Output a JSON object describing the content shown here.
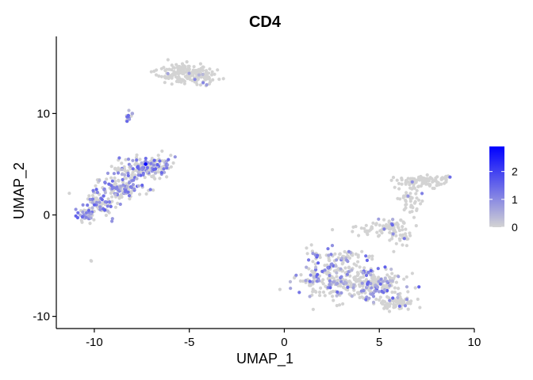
{
  "chart_data": {
    "type": "scatter",
    "title": "CD4",
    "xlabel": "UMAP_1",
    "ylabel": "UMAP_2",
    "xlim": [
      -12,
      10
    ],
    "ylim": [
      -11.2,
      17.6
    ],
    "x_ticks": [
      -10,
      -5,
      0,
      5,
      10
    ],
    "x_tick_labels": [
      "-10",
      "-5",
      "0",
      "5",
      "10"
    ],
    "y_ticks": [
      -10,
      0,
      10
    ],
    "y_tick_labels": [
      "-10",
      "0",
      "10"
    ],
    "color_scale": {
      "low": "#d3d3d3",
      "high": "#0000ff",
      "range": [
        0,
        2.9
      ],
      "ticks": [
        0,
        1,
        2
      ],
      "tick_labels": [
        "0",
        "1",
        "2"
      ]
    },
    "grid": false,
    "legend_placement": "right",
    "clusters": [
      {
        "cx": -5.3,
        "cy": 14.1,
        "sx": 0.7,
        "sy": 0.55,
        "n": 150,
        "expr_frac": 0.03
      },
      {
        "cx": -4.4,
        "cy": 13.5,
        "sx": 0.35,
        "sy": 0.45,
        "n": 40,
        "expr_frac": 0.03
      },
      {
        "cx": -8.2,
        "cy": 9.5,
        "sx": 0.12,
        "sy": 0.25,
        "n": 12,
        "expr_frac": 0.4
      },
      {
        "cx": -7.3,
        "cy": 4.6,
        "sx": 0.75,
        "sy": 0.55,
        "n": 170,
        "expr_frac": 0.4
      },
      {
        "cx": -8.7,
        "cy": 2.6,
        "sx": 0.65,
        "sy": 0.55,
        "n": 130,
        "expr_frac": 0.45
      },
      {
        "cx": -9.7,
        "cy": 1.0,
        "sx": 0.45,
        "sy": 0.55,
        "n": 70,
        "expr_frac": 0.45
      },
      {
        "cx": -10.5,
        "cy": -0.2,
        "sx": 0.25,
        "sy": 0.35,
        "n": 35,
        "expr_frac": 0.5
      },
      {
        "cx": -10.1,
        "cy": -4.5,
        "sx": 0.04,
        "sy": 0.04,
        "n": 2,
        "expr_frac": 0.0
      },
      {
        "cx": 7.3,
        "cy": 3.3,
        "sx": 0.7,
        "sy": 0.3,
        "n": 90,
        "expr_frac": 0.02
      },
      {
        "cx": 6.6,
        "cy": 1.2,
        "sx": 0.3,
        "sy": 0.9,
        "n": 50,
        "expr_frac": 0.05
      },
      {
        "cx": 5.6,
        "cy": -1.0,
        "sx": 0.45,
        "sy": 0.35,
        "n": 45,
        "expr_frac": 0.05
      },
      {
        "cx": 6.1,
        "cy": -2.2,
        "sx": 0.25,
        "sy": 0.5,
        "n": 25,
        "expr_frac": 0.05
      },
      {
        "cx": 4.6,
        "cy": -1.5,
        "sx": 0.55,
        "sy": 0.3,
        "n": 30,
        "expr_frac": 0.05
      },
      {
        "cx": 2.7,
        "cy": -6.3,
        "sx": 1.0,
        "sy": 1.0,
        "n": 250,
        "expr_frac": 0.3
      },
      {
        "cx": 4.8,
        "cy": -6.9,
        "sx": 0.8,
        "sy": 0.7,
        "n": 170,
        "expr_frac": 0.25
      },
      {
        "cx": 5.9,
        "cy": -8.6,
        "sx": 0.45,
        "sy": 0.4,
        "n": 70,
        "expr_frac": 0.05
      },
      {
        "cx": 3.2,
        "cy": -4.0,
        "sx": 0.6,
        "sy": 0.35,
        "n": 40,
        "expr_frac": 0.2
      },
      {
        "cx": 1.7,
        "cy": -4.0,
        "sx": 0.15,
        "sy": 0.2,
        "n": 8,
        "expr_frac": 0.5
      },
      {
        "cx": 8.6,
        "cy": 3.7,
        "sx": 0.18,
        "sy": 0.08,
        "n": 8,
        "expr_frac": 0.2
      }
    ],
    "highlight_points": [
      {
        "x": -7.3,
        "y": 5.0,
        "value": 2.9
      },
      {
        "x": -8.0,
        "y": 10.0,
        "value": 0.6
      }
    ]
  }
}
